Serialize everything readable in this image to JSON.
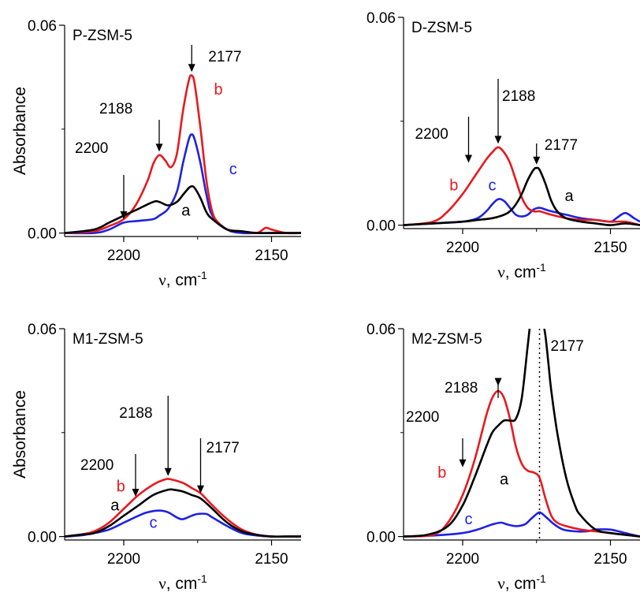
{
  "colors": {
    "a": "#000000",
    "b": "#e8191e",
    "c": "#1e22e0"
  },
  "chart_data": [
    {
      "type": "line",
      "title": "P-ZSM-5",
      "xlabel": "ν, cm-1",
      "xlabel_nu": "ν",
      "xlabel_unit": ", cm",
      "xlabel_sup": "-1",
      "ylabel": "Absorbance",
      "xlim": [
        2220,
        2140
      ],
      "ylim": [
        -0.001,
        0.06
      ],
      "xticks": [
        2200,
        2150
      ],
      "yticks": [
        0.0,
        0.06
      ],
      "ytick_labels": [
        "0.00",
        "0.06"
      ],
      "series": [
        {
          "name": "a",
          "x": [
            2220,
            2210,
            2205,
            2200,
            2195,
            2190,
            2188,
            2185,
            2182,
            2180,
            2178,
            2177,
            2176,
            2174,
            2172,
            2170,
            2165,
            2160,
            2155,
            2150,
            2145,
            2140
          ],
          "y": [
            0.0,
            0.001,
            0.003,
            0.005,
            0.007,
            0.009,
            0.009,
            0.008,
            0.009,
            0.011,
            0.013,
            0.0135,
            0.013,
            0.01,
            0.006,
            0.004,
            0.001,
            0.0005,
            0.0,
            0.0,
            0.0,
            0.0
          ]
        },
        {
          "name": "b",
          "x": [
            2220,
            2210,
            2205,
            2200,
            2196,
            2192,
            2190,
            2188,
            2186,
            2184,
            2182,
            2180,
            2178,
            2177,
            2176,
            2174,
            2172,
            2170,
            2168,
            2165,
            2160,
            2155,
            2152,
            2150,
            2145,
            2140
          ],
          "y": [
            0.0,
            0.0005,
            0.002,
            0.004,
            0.008,
            0.015,
            0.02,
            0.0225,
            0.021,
            0.019,
            0.023,
            0.035,
            0.044,
            0.0455,
            0.043,
            0.03,
            0.015,
            0.006,
            0.003,
            0.001,
            0.0005,
            0.0,
            0.0015,
            0.001,
            0.0,
            0.0
          ]
        },
        {
          "name": "c",
          "x": [
            2220,
            2210,
            2205,
            2200,
            2195,
            2190,
            2188,
            2185,
            2182,
            2180,
            2178,
            2177,
            2176,
            2174,
            2172,
            2170,
            2165,
            2160,
            2155,
            2150,
            2145,
            2140
          ],
          "y": [
            0.0,
            0.0,
            0.001,
            0.003,
            0.0035,
            0.004,
            0.005,
            0.007,
            0.012,
            0.02,
            0.027,
            0.0285,
            0.027,
            0.02,
            0.011,
            0.005,
            0.001,
            0.0,
            0.0,
            0.0,
            0.0,
            0.0
          ]
        }
      ],
      "annotations": [
        {
          "text": "2200",
          "x": 2200,
          "arrow_y": 0.004
        },
        {
          "text": "2188",
          "x": 2188,
          "arrow_y": 0.0235
        },
        {
          "text": "2177",
          "x": 2177,
          "arrow_y": 0.0465
        }
      ],
      "curve_labels": [
        {
          "text": "b",
          "x": 2168,
          "y": 0.04
        },
        {
          "text": "c",
          "x": 2163,
          "y": 0.017
        },
        {
          "text": "a",
          "x": 2179,
          "y": 0.005
        }
      ]
    },
    {
      "type": "line",
      "title": "D-ZSM-5",
      "xlabel": "ν, cm-1",
      "xlabel_nu": "ν",
      "xlabel_unit": ", cm",
      "xlabel_sup": "-1",
      "ylabel": "",
      "xlim": [
        2220,
        2140
      ],
      "ylim": [
        -0.001,
        0.06
      ],
      "xticks": [
        2200,
        2150
      ],
      "yticks": [
        0.0,
        0.06
      ],
      "ytick_labels": [
        "0.00",
        "0.06"
      ],
      "series": [
        {
          "name": "a",
          "x": [
            2220,
            2210,
            2200,
            2195,
            2190,
            2186,
            2184,
            2182,
            2180,
            2178,
            2176,
            2175,
            2174,
            2172,
            2170,
            2168,
            2165,
            2160,
            2155,
            2150,
            2145,
            2140
          ],
          "y": [
            0.0,
            0.0005,
            0.001,
            0.0015,
            0.002,
            0.003,
            0.004,
            0.006,
            0.009,
            0.013,
            0.016,
            0.0165,
            0.016,
            0.012,
            0.007,
            0.004,
            0.002,
            0.001,
            0.0005,
            0.0,
            0.0005,
            0.0
          ]
        },
        {
          "name": "b",
          "x": [
            2220,
            2210,
            2205,
            2200,
            2196,
            2192,
            2190,
            2188,
            2186,
            2184,
            2182,
            2180,
            2178,
            2176,
            2174,
            2172,
            2170,
            2165,
            2160,
            2155,
            2150,
            2145,
            2140
          ],
          "y": [
            0.0,
            0.001,
            0.004,
            0.009,
            0.014,
            0.019,
            0.021,
            0.0225,
            0.021,
            0.018,
            0.013,
            0.008,
            0.005,
            0.004,
            0.004,
            0.0035,
            0.003,
            0.002,
            0.0015,
            0.0015,
            0.001,
            0.001,
            0.0
          ]
        },
        {
          "name": "c",
          "x": [
            2220,
            2210,
            2200,
            2195,
            2192,
            2190,
            2188,
            2186,
            2184,
            2182,
            2180,
            2178,
            2176,
            2174,
            2172,
            2170,
            2165,
            2160,
            2155,
            2150,
            2148,
            2145,
            2142,
            2140
          ],
          "y": [
            0.0,
            0.0005,
            0.001,
            0.002,
            0.004,
            0.006,
            0.0075,
            0.007,
            0.005,
            0.003,
            0.0025,
            0.003,
            0.0045,
            0.005,
            0.0045,
            0.004,
            0.003,
            0.002,
            0.0015,
            0.001,
            0.002,
            0.0035,
            0.002,
            0.001
          ]
        }
      ],
      "annotations": [
        {
          "text": "2200",
          "x": 2198,
          "arrow_y": 0.018
        },
        {
          "text": "2188",
          "x": 2188,
          "arrow_y": 0.0235
        },
        {
          "text": "2177",
          "x": 2175,
          "arrow_y": 0.0175
        }
      ],
      "curve_labels": [
        {
          "text": "b",
          "x": 2203,
          "y": 0.01
        },
        {
          "text": "c",
          "x": 2190,
          "y": 0.01
        },
        {
          "text": "a",
          "x": 2164,
          "y": 0.007
        }
      ]
    },
    {
      "type": "line",
      "title": "M1-ZSM-5",
      "xlabel": "ν, cm-1",
      "xlabel_nu": "ν",
      "xlabel_unit": ", cm",
      "xlabel_sup": "-1",
      "ylabel": "Absorbance",
      "xlim": [
        2220,
        2140
      ],
      "ylim": [
        -0.001,
        0.06
      ],
      "xticks": [
        2200,
        2150
      ],
      "yticks": [
        0.0,
        0.06
      ],
      "ytick_labels": [
        "0.00",
        "0.06"
      ],
      "series": [
        {
          "name": "a",
          "x": [
            2220,
            2215,
            2210,
            2205,
            2200,
            2195,
            2190,
            2185,
            2183,
            2180,
            2177,
            2174,
            2170,
            2165,
            2160,
            2155,
            2150,
            2145,
            2140
          ],
          "y": [
            0.0,
            0.0005,
            0.001,
            0.003,
            0.006,
            0.009,
            0.012,
            0.0135,
            0.0135,
            0.013,
            0.012,
            0.011,
            0.008,
            0.004,
            0.0015,
            0.0005,
            0.0,
            0.0,
            0.0
          ]
        },
        {
          "name": "b",
          "x": [
            2220,
            2215,
            2210,
            2205,
            2200,
            2195,
            2190,
            2186,
            2184,
            2180,
            2177,
            2174,
            2170,
            2165,
            2160,
            2155,
            2150,
            2145,
            2140
          ],
          "y": [
            0.0,
            0.0005,
            0.0015,
            0.004,
            0.008,
            0.012,
            0.015,
            0.0165,
            0.0165,
            0.0155,
            0.014,
            0.0125,
            0.009,
            0.005,
            0.002,
            0.0005,
            0.0,
            0.0,
            0.0
          ]
        },
        {
          "name": "c",
          "x": [
            2220,
            2215,
            2210,
            2205,
            2200,
            2195,
            2192,
            2188,
            2185,
            2182,
            2180,
            2177,
            2175,
            2172,
            2170,
            2165,
            2160,
            2155,
            2150,
            2145,
            2140
          ],
          "y": [
            0.0,
            0.0003,
            0.001,
            0.002,
            0.004,
            0.006,
            0.007,
            0.0075,
            0.007,
            0.0055,
            0.005,
            0.006,
            0.0065,
            0.0065,
            0.0055,
            0.003,
            0.001,
            0.0003,
            0.0,
            0.0,
            0.0
          ]
        }
      ],
      "annotations": [
        {
          "text": "2200",
          "x": 2196,
          "arrow_y": 0.0115
        },
        {
          "text": "2188",
          "x": 2185,
          "arrow_y": 0.0175
        },
        {
          "text": "2177",
          "x": 2174,
          "arrow_y": 0.0125
        }
      ],
      "curve_labels": [
        {
          "text": "b",
          "x": 2201,
          "y": 0.013
        },
        {
          "text": "a",
          "x": 2203,
          "y": 0.0075
        },
        {
          "text": "c",
          "x": 2190,
          "y": 0.0025
        }
      ]
    },
    {
      "type": "line",
      "title": "M2-ZSM-5",
      "xlabel": "ν, cm-1",
      "xlabel_nu": "ν",
      "xlabel_unit": ", cm",
      "xlabel_sup": "-1",
      "ylabel": "",
      "xlim": [
        2220,
        2140
      ],
      "ylim": [
        -0.001,
        0.06
      ],
      "xticks": [
        2200,
        2150
      ],
      "yticks": [
        0.0,
        0.06
      ],
      "ytick_labels": [
        "0.00",
        "0.06"
      ],
      "dotted_line_x": 2174,
      "series": [
        {
          "name": "a",
          "x": [
            2220,
            2212,
            2205,
            2200,
            2196,
            2192,
            2190,
            2188,
            2186,
            2184,
            2182,
            2180,
            2178,
            2177,
            2176,
            2175,
            2174,
            2173,
            2172,
            2171,
            2170,
            2168,
            2165,
            2162,
            2160,
            2155,
            2150,
            2145,
            2140
          ],
          "y": [
            0.0,
            0.0005,
            0.003,
            0.009,
            0.017,
            0.026,
            0.03,
            0.032,
            0.0335,
            0.0335,
            0.034,
            0.04,
            0.055,
            0.062,
            0.062,
            0.062,
            0.062,
            0.062,
            0.058,
            0.05,
            0.042,
            0.03,
            0.017,
            0.009,
            0.006,
            0.002,
            0.001,
            0.0005,
            0.0
          ]
        },
        {
          "name": "b",
          "x": [
            2220,
            2210,
            2205,
            2200,
            2196,
            2192,
            2190,
            2188,
            2186,
            2184,
            2182,
            2180,
            2178,
            2176,
            2174,
            2172,
            2170,
            2168,
            2165,
            2160,
            2155,
            2150,
            2145,
            2140
          ],
          "y": [
            0.0,
            0.0005,
            0.004,
            0.012,
            0.022,
            0.035,
            0.04,
            0.042,
            0.04,
            0.034,
            0.026,
            0.021,
            0.019,
            0.0185,
            0.017,
            0.011,
            0.006,
            0.004,
            0.003,
            0.002,
            0.0015,
            0.001,
            0.0005,
            0.0
          ]
        },
        {
          "name": "c",
          "x": [
            2220,
            2210,
            2200,
            2195,
            2190,
            2187,
            2185,
            2182,
            2179,
            2177,
            2175,
            2174,
            2173,
            2171,
            2169,
            2166,
            2162,
            2158,
            2155,
            2150,
            2145,
            2140
          ],
          "y": [
            0.0,
            0.0003,
            0.001,
            0.002,
            0.0035,
            0.004,
            0.0035,
            0.003,
            0.0035,
            0.005,
            0.0065,
            0.007,
            0.0065,
            0.005,
            0.0035,
            0.002,
            0.0015,
            0.0015,
            0.002,
            0.002,
            0.001,
            0.0
          ]
        }
      ],
      "annotations": [
        {
          "text": "2200",
          "x": 2200,
          "arrow_y": 0.02
        },
        {
          "text": "2188",
          "x": 2188,
          "arrow_y": 0.0435
        },
        {
          "text": "2177",
          "x": null
        }
      ],
      "curve_labels": [
        {
          "text": "b",
          "x": 2207,
          "y": 0.017
        },
        {
          "text": "a",
          "x": 2186,
          "y": 0.015
        },
        {
          "text": "c",
          "x": 2198,
          "y": 0.0035
        }
      ]
    }
  ]
}
